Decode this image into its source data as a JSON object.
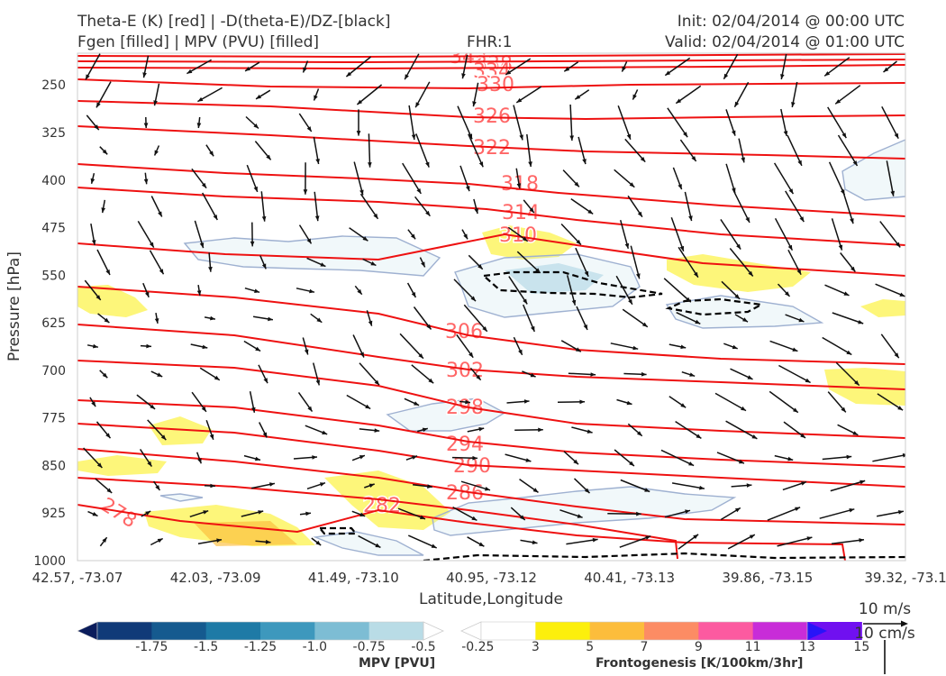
{
  "header": {
    "left_line1": "Theta-E (K) [red] | -D(theta-E)/DZ-[black]",
    "left_line2": "Fgen [filled] | MPV (PVU) [filled]",
    "center": "FHR:1",
    "right_line1": "Init: 02/04/2014 @ 00:00 UTC",
    "right_line2": "Valid: 02/04/2014 @ 01:00 UTC"
  },
  "chart_data": {
    "type": "cross-section",
    "xlabel": "Latitude,Longitude",
    "ylabel": "Pressure [hPa]",
    "ylim": [
      1000,
      200
    ],
    "y_ticks": [
      "250",
      "325",
      "400",
      "475",
      "550",
      "625",
      "700",
      "775",
      "850",
      "925",
      "1000"
    ],
    "x_ticks": [
      "42.57, -73.07",
      "42.03, -73.09",
      "41.49, -73.10",
      "40.95, -73.12",
      "40.41, -73.13",
      "39.86, -73.15",
      "39.32, -73.1"
    ],
    "theta_e_contours": {
      "color": "#ee1111",
      "labels": [
        "342",
        "338",
        "334",
        "330",
        "326",
        "322",
        "318",
        "314",
        "310",
        "306",
        "302",
        "298",
        "294",
        "290",
        "286",
        "282",
        "278"
      ]
    },
    "mpv_colorbar": {
      "label": "MPV [PVU]",
      "tick_labels": [
        "-1.75",
        "-1.5",
        "-1.25",
        "-1.0",
        "-0.75",
        "-0.5",
        "-0.25"
      ],
      "colors": [
        "#0b1d5c",
        "#103a78",
        "#155a8f",
        "#1e7aa6",
        "#3d98bd",
        "#7dbdd4",
        "#b9dce6",
        "#ffffff"
      ]
    },
    "fgen_colorbar": {
      "label": "Frontogenesis [K/100km/3hr]",
      "tick_labels": [
        "3",
        "5",
        "7",
        "9",
        "11",
        "13",
        "15"
      ],
      "colors": [
        "#ffffff",
        "#fcef0c",
        "#fcbd3c",
        "#fc8c64",
        "#fc5aa0",
        "#c82cd8",
        "#7010f0",
        "#2814f8"
      ]
    },
    "vector_key": {
      "horizontal": "10 m/s",
      "vertical": "10 cm/s"
    }
  }
}
